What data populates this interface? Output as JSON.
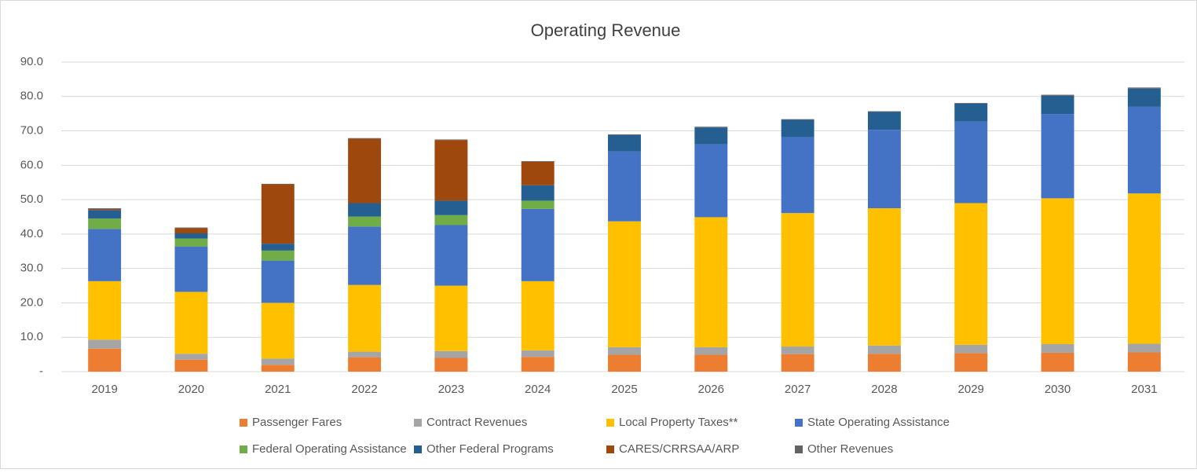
{
  "chart_data": {
    "type": "stacked_bar",
    "title": "Operating Revenue",
    "categories": [
      "2019",
      "2020",
      "2021",
      "2022",
      "2023",
      "2024",
      "2025",
      "2026",
      "2027",
      "2028",
      "2029",
      "2030",
      "2031"
    ],
    "series": [
      {
        "name": "Passenger Fares",
        "color": "#ed7d31",
        "values": [
          6.7,
          3.5,
          2.0,
          4.2,
          4.0,
          4.3,
          4.9,
          4.9,
          5.1,
          5.2,
          5.4,
          5.5,
          5.6
        ]
      },
      {
        "name": "Contract Revenues",
        "color": "#a5a5a5",
        "values": [
          2.6,
          1.7,
          1.8,
          1.6,
          2.0,
          1.9,
          2.2,
          2.2,
          2.2,
          2.4,
          2.4,
          2.5,
          2.5
        ]
      },
      {
        "name": "Local Property Taxes**",
        "color": "#ffc000",
        "values": [
          17.0,
          18.0,
          16.2,
          19.4,
          19.0,
          20.1,
          36.6,
          37.8,
          38.8,
          39.9,
          41.2,
          42.4,
          43.7
        ]
      },
      {
        "name": "State Operating Assistance",
        "color": "#4472c4",
        "values": [
          15.2,
          13.2,
          12.3,
          17.0,
          17.6,
          21.0,
          20.3,
          21.2,
          22.1,
          22.8,
          23.7,
          24.5,
          25.2
        ]
      },
      {
        "name": "Federal Operating Assistance",
        "color": "#70ad47",
        "values": [
          3.0,
          2.3,
          2.9,
          2.9,
          2.9,
          2.4,
          0,
          0,
          0,
          0,
          0,
          0,
          0
        ]
      },
      {
        "name": "Other Federal Programs",
        "color": "#255e91",
        "values": [
          2.5,
          1.5,
          2.0,
          3.9,
          4.2,
          4.5,
          4.8,
          4.9,
          5.0,
          5.2,
          5.2,
          5.3,
          5.3
        ]
      },
      {
        "name": "CARES/CRRSAA/ARP",
        "color": "#9e480e",
        "values": [
          0.3,
          1.5,
          17.3,
          18.7,
          17.6,
          6.8,
          0,
          0,
          0,
          0,
          0,
          0,
          0
        ]
      },
      {
        "name": "Other Revenues",
        "color": "#636363",
        "values": [
          0.2,
          0.2,
          0.1,
          0.2,
          0.2,
          0.2,
          0.2,
          0.2,
          0.2,
          0.2,
          0.2,
          0.3,
          0.3
        ]
      }
    ],
    "ylim": [
      0,
      90
    ],
    "yticks": [
      {
        "value": 0,
        "label": "-"
      },
      {
        "value": 10,
        "label": "10.0"
      },
      {
        "value": 20,
        "label": "20.0"
      },
      {
        "value": 30,
        "label": "30.0"
      },
      {
        "value": 40,
        "label": "40.0"
      },
      {
        "value": 50,
        "label": "50.0"
      },
      {
        "value": 60,
        "label": "60.0"
      },
      {
        "value": 70,
        "label": "70.0"
      },
      {
        "value": 80,
        "label": "80.0"
      },
      {
        "value": 90,
        "label": "90.0"
      }
    ],
    "grid": true,
    "legend": "bottom"
  }
}
